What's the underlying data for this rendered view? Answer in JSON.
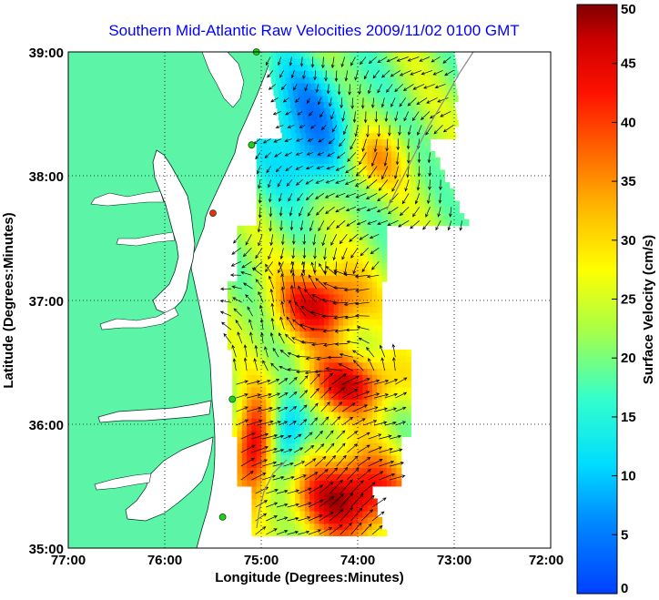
{
  "title": "Southern Mid-Atlantic Raw Velocities 2009/11/02 0100 GMT",
  "map": {
    "x_label": "Longitude (Degrees:Minutes)",
    "y_label": "Latitude (Degrees:Minutes)",
    "lon_range": [
      -77,
      -72
    ],
    "lat_range": [
      35,
      39
    ],
    "x_ticks": [
      "77:00",
      "76:00",
      "75:00",
      "74:00",
      "73:00",
      "72:00"
    ],
    "y_ticks": [
      "39:00",
      "38:00",
      "37:00",
      "36:00",
      "35:00"
    ],
    "grid": "dotted",
    "land_color": "#5cf5a8",
    "ocean_color": "#ffffff"
  },
  "colorbar": {
    "label": "Surface Velocity (cm/s)",
    "range": [
      0,
      50
    ],
    "ticks": [
      "50",
      "45",
      "40",
      "35",
      "30",
      "25",
      "20",
      "15",
      "10",
      "5",
      "0"
    ],
    "colormap": "jet"
  },
  "stations": [
    {
      "lon": -75.05,
      "lat": 39.0,
      "color": "#22cc22"
    },
    {
      "lon": -75.1,
      "lat": 38.25,
      "color": "#22cc22"
    },
    {
      "lon": -75.5,
      "lat": 37.7,
      "color": "#ff2222"
    },
    {
      "lon": -75.3,
      "lat": 36.2,
      "color": "#22cc22"
    },
    {
      "lon": -75.4,
      "lat": 35.25,
      "color": "#22cc22"
    }
  ]
}
